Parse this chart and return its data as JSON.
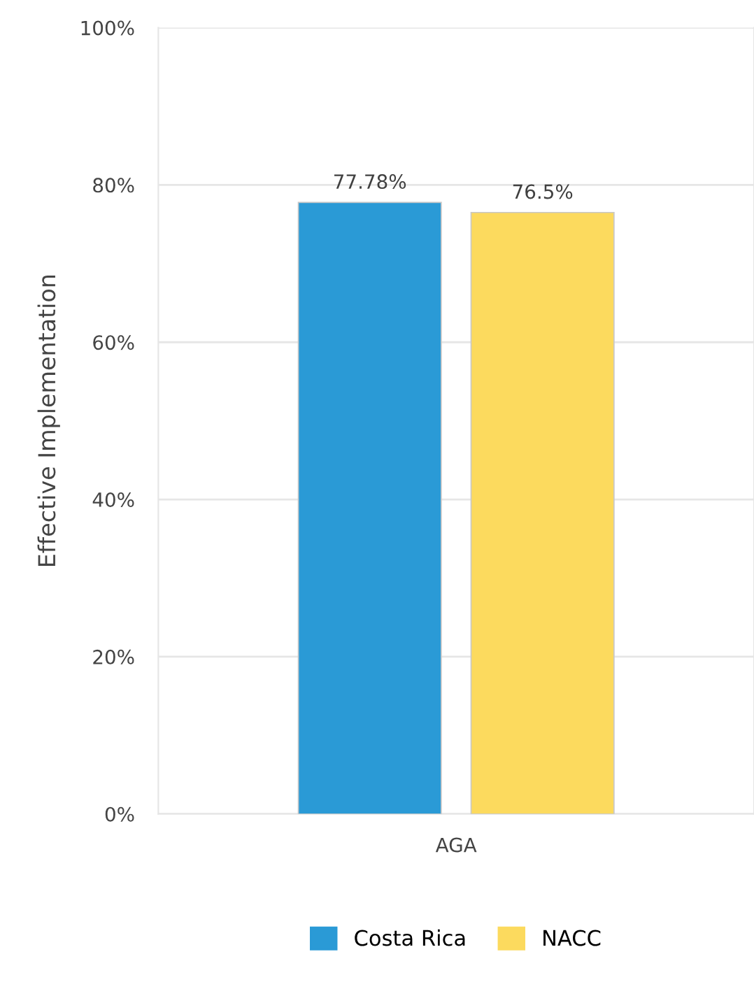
{
  "chart_data": {
    "type": "bar",
    "ylabel": "Effective Implementation",
    "categories": [
      "AGA"
    ],
    "series": [
      {
        "name": "Costa Rica",
        "color": "#2a9ad6",
        "values": [
          77.78
        ],
        "value_labels": [
          "77.78%"
        ]
      },
      {
        "name": "NACC",
        "color": "#fcda5e",
        "values": [
          76.5
        ],
        "value_labels": [
          "76.5%"
        ]
      }
    ],
    "ylim": [
      0,
      100
    ],
    "yticks": [
      {
        "value": 0,
        "label": "0%"
      },
      {
        "value": 20,
        "label": "20%"
      },
      {
        "value": 40,
        "label": "40%"
      },
      {
        "value": 60,
        "label": "60%"
      },
      {
        "value": 80,
        "label": "80%"
      },
      {
        "value": 100,
        "label": "100%"
      }
    ],
    "grid": "y",
    "legend": "bottom"
  }
}
